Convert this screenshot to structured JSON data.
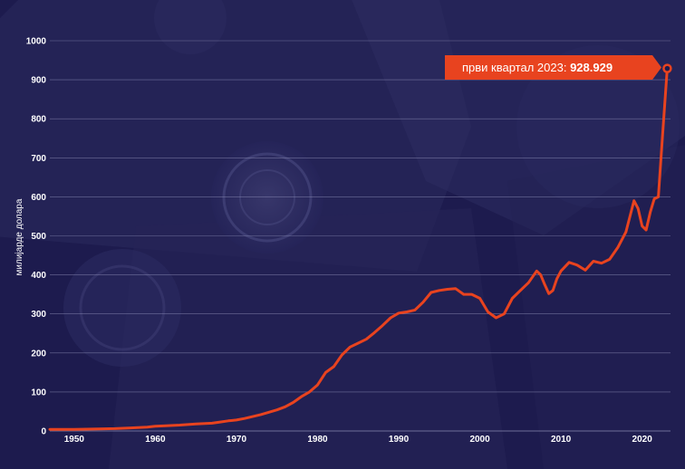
{
  "chart_data": {
    "type": "line",
    "ylabel": "милијарде долара",
    "ylim": [
      0,
      1000
    ],
    "y_ticks": [
      "0",
      "100",
      "200",
      "300",
      "400",
      "500",
      "600",
      "700",
      "800",
      "900",
      "1000"
    ],
    "xlim": [
      1947,
      2023.5
    ],
    "x_ticks": [
      "1950",
      "1960",
      "1970",
      "1980",
      "1990",
      "2000",
      "2010",
      "2020"
    ],
    "grid": true,
    "colors": {
      "line": "#e8431f",
      "background": "#1d1b4e",
      "grid": "#8f8fb8",
      "callout": "#e8431f"
    },
    "annotation": {
      "label": "први квартал 2023: ",
      "value": "928.929",
      "x": 2023.1,
      "y": 928.929
    },
    "series": [
      {
        "x": [
          1947,
          1950,
          1953,
          1955,
          1957,
          1959,
          1960,
          1961,
          1963,
          1965,
          1967,
          1968,
          1969,
          1970,
          1971,
          1972,
          1973,
          1974,
          1975,
          1976,
          1977,
          1978,
          1979,
          1980,
          1981,
          1982,
          1983,
          1984,
          1985,
          1986,
          1987,
          1988,
          1989,
          1990,
          1991,
          1992,
          1993,
          1994,
          1995,
          1996,
          1997,
          1998,
          1999,
          2000,
          2001,
          2002,
          2003,
          2004,
          2005,
          2006,
          2007,
          2007.5,
          2008,
          2008.5,
          2009,
          2009.5,
          2010,
          2011,
          2012,
          2013,
          2014,
          2015,
          2016,
          2017,
          2018,
          2019,
          2019.5,
          2020,
          2020.5,
          2021,
          2021.5,
          2022,
          2022.5,
          2023.1
        ],
        "y": [
          4,
          4,
          5,
          6,
          8,
          10,
          12,
          13,
          15,
          18,
          20,
          23,
          26,
          28,
          32,
          37,
          42,
          48,
          54,
          62,
          73,
          88,
          100,
          118,
          150,
          165,
          195,
          215,
          225,
          235,
          252,
          270,
          290,
          302,
          305,
          310,
          330,
          355,
          360,
          363,
          365,
          350,
          350,
          340,
          305,
          290,
          300,
          340,
          360,
          380,
          410,
          400,
          375,
          352,
          360,
          390,
          410,
          432,
          425,
          412,
          435,
          430,
          440,
          470,
          510,
          590,
          570,
          525,
          515,
          560,
          595,
          600,
          750,
          928.929
        ]
      }
    ]
  }
}
